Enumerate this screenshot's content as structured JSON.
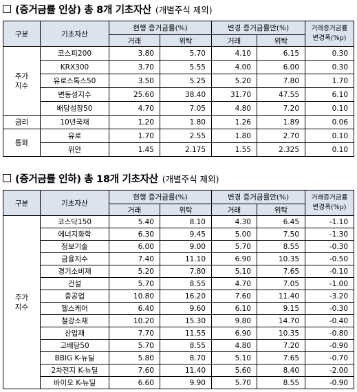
{
  "section1": {
    "title": "(증거금률 인상) 총 8개 기초자산",
    "subtitle": "(개별주식 제외)"
  },
  "section2": {
    "title": "(증거금률 인하) 총 18개 기초자산",
    "subtitle": "(개별주식 제외)"
  },
  "header": {
    "category": "구분",
    "asset": "기초자산",
    "current": "현행 증거금률(%)",
    "proposed": "변경 증거금률안(%)",
    "trade": "거래",
    "consign": "위탁",
    "change_line1": "거래증거금률",
    "change_line2": "변경폭(%p)"
  },
  "table1": {
    "groups": [
      {
        "label_lines": [
          "주가",
          "지수"
        ],
        "rows": [
          {
            "asset": "코스피200",
            "cur_trade": "3.80",
            "cur_consign": "5.70",
            "new_trade": "4.10",
            "new_consign": "6.15",
            "change": "0.30"
          },
          {
            "asset": "KRX300",
            "cur_trade": "3.70",
            "cur_consign": "5.55",
            "new_trade": "4.00",
            "new_consign": "6.00",
            "change": "0.30"
          },
          {
            "asset": "유로스톡스50",
            "cur_trade": "3.50",
            "cur_consign": "5.25",
            "new_trade": "5.20",
            "new_consign": "7.80",
            "change": "1.70"
          },
          {
            "asset": "변동성지수",
            "cur_trade": "25.60",
            "cur_consign": "38.40",
            "new_trade": "31.70",
            "new_consign": "47.55",
            "change": "6.10"
          },
          {
            "asset": "배당성장50",
            "cur_trade": "4.70",
            "cur_consign": "7.05",
            "new_trade": "4.80",
            "new_consign": "7.20",
            "change": "0.10"
          }
        ]
      },
      {
        "label_lines": [
          "금리"
        ],
        "rows": [
          {
            "asset": "10년국채",
            "cur_trade": "1.20",
            "cur_consign": "1.80",
            "new_trade": "1.26",
            "new_consign": "1.89",
            "change": "0.06"
          }
        ]
      },
      {
        "label_lines": [
          "통화"
        ],
        "rows": [
          {
            "asset": "유로",
            "cur_trade": "1.70",
            "cur_consign": "2.55",
            "new_trade": "1.80",
            "new_consign": "2.70",
            "change": "0.10"
          },
          {
            "asset": "위안",
            "cur_trade": "1.45",
            "cur_consign": "2.175",
            "new_trade": "1.55",
            "new_consign": "2.325",
            "change": "0.10"
          }
        ]
      }
    ]
  },
  "table2": {
    "groups": [
      {
        "label_lines": [
          "주가",
          "지수"
        ],
        "rows": [
          {
            "asset": "코스닥150",
            "cur_trade": "5.40",
            "cur_consign": "8.10",
            "new_trade": "4.30",
            "new_consign": "6.45",
            "change": "-1.10"
          },
          {
            "asset": "에너지화학",
            "cur_trade": "6.30",
            "cur_consign": "9.45",
            "new_trade": "5.00",
            "new_consign": "7.50",
            "change": "-1.30"
          },
          {
            "asset": "정보기술",
            "cur_trade": "6.00",
            "cur_consign": "9.00",
            "new_trade": "5.70",
            "new_consign": "8.55",
            "change": "-0.30"
          },
          {
            "asset": "금융지수",
            "cur_trade": "7.40",
            "cur_consign": "11.10",
            "new_trade": "6.90",
            "new_consign": "10.35",
            "change": "-0.50"
          },
          {
            "asset": "경기소비재",
            "cur_trade": "5.20",
            "cur_consign": "7.80",
            "new_trade": "5.10",
            "new_consign": "7.65",
            "change": "-0.10"
          },
          {
            "asset": "건설",
            "cur_trade": "5.70",
            "cur_consign": "8.55",
            "new_trade": "4.70",
            "new_consign": "7.05",
            "change": "-1.00"
          },
          {
            "asset": "중공업",
            "cur_trade": "10.80",
            "cur_consign": "16.20",
            "new_trade": "7.60",
            "new_consign": "11.40",
            "change": "-3.20"
          },
          {
            "asset": "헬스케어",
            "cur_trade": "6.40",
            "cur_consign": "9.60",
            "new_trade": "6.10",
            "new_consign": "9.15",
            "change": "-0.30"
          },
          {
            "asset": "철강소재",
            "cur_trade": "10.20",
            "cur_consign": "15.30",
            "new_trade": "9.80",
            "new_consign": "14.70",
            "change": "-0.40"
          },
          {
            "asset": "산업재",
            "cur_trade": "7.70",
            "cur_consign": "11.55",
            "new_trade": "6.90",
            "new_consign": "10.35",
            "change": "-0.80"
          },
          {
            "asset": "고배당50",
            "cur_trade": "5.70",
            "cur_consign": "8.55",
            "new_trade": "4.80",
            "new_consign": "7.20",
            "change": "-0.90"
          },
          {
            "asset": "BBIG K-뉴딜",
            "cur_trade": "5.80",
            "cur_consign": "8.70",
            "new_trade": "5.10",
            "new_consign": "7.65",
            "change": "-0.70"
          },
          {
            "asset": "2차전지 K-뉴딜",
            "cur_trade": "7.60",
            "cur_consign": "11.40",
            "new_trade": "5.60",
            "new_consign": "8.40",
            "change": "-2.00"
          },
          {
            "asset": "바이오 K-뉴딜",
            "cur_trade": "6.60",
            "cur_consign": "9.90",
            "new_trade": "5.70",
            "new_consign": "8.55",
            "change": "-0.90"
          }
        ]
      }
    ]
  }
}
